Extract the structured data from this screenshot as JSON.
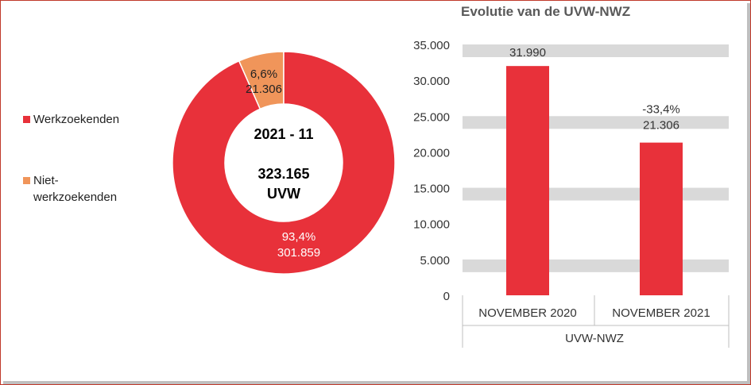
{
  "chart_data": [
    {
      "type": "pie",
      "variant": "donut",
      "center_period": "2021 - 11",
      "center_total": "323.165",
      "center_unit": "UVW",
      "slices": [
        {
          "name": "Werkzoekenden",
          "pct_label": "93,4%",
          "value_label": "301.859",
          "value": 301859,
          "color": "#e8313a"
        },
        {
          "name": "Niet-werkzoekenden",
          "pct_label": "6,6%",
          "value_label": "21.306",
          "value": 21306,
          "color": "#f0955a"
        }
      ],
      "legend": [
        {
          "label_line1": "Werkzoekenden",
          "label_line2": "",
          "color": "#e8313a"
        },
        {
          "label_line1": "Niet-",
          "label_line2": "werkzoekenden",
          "color": "#f0955a"
        }
      ],
      "legend_position": "left"
    },
    {
      "type": "bar",
      "title": "Evolutie van de UVW-NWZ",
      "categories": [
        "NOVEMBER 2020",
        "NOVEMBER 2021"
      ],
      "group_label": "UVW-NWZ",
      "values": [
        31990,
        21306
      ],
      "data_labels": [
        {
          "line1": "31.990",
          "line2": ""
        },
        {
          "line1": "-33,4%",
          "line2": "21.306"
        }
      ],
      "ylim": [
        0,
        35000
      ],
      "ytick_labels": [
        "0",
        "5.000",
        "10.000",
        "15.000",
        "20.000",
        "25.000",
        "30.000",
        "35.000"
      ],
      "yticks": [
        0,
        5000,
        10000,
        15000,
        20000,
        25000,
        30000,
        35000
      ],
      "bar_color": "#e8313a",
      "grid_color": "#d9d9d9",
      "grid": true
    }
  ]
}
